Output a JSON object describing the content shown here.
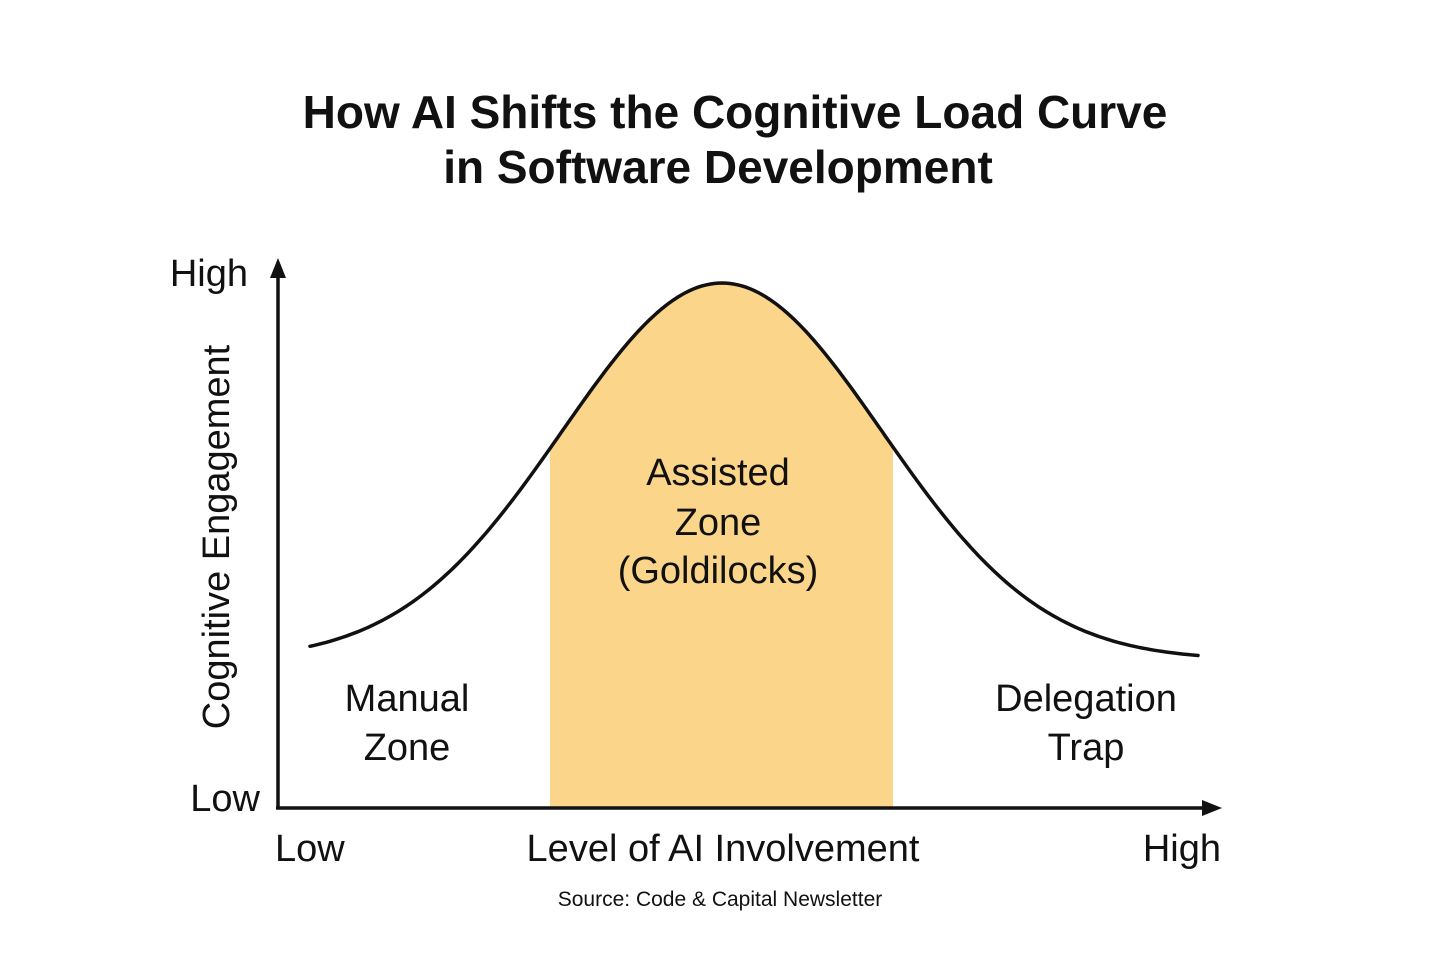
{
  "title": {
    "line1": "How AI Shifts the Cognitive Load Curve",
    "line2": "in Software Development"
  },
  "y_axis": {
    "label": "Cognitive Engagement",
    "high": "High",
    "low": "Low"
  },
  "x_axis": {
    "label": "Level of AI Involvement",
    "low": "Low",
    "high": "High"
  },
  "zones": {
    "manual": {
      "line1": "Manual",
      "line2": "Zone"
    },
    "assisted": {
      "line1": "Assisted",
      "line2": "Zone",
      "line3": "(Goldilocks)"
    },
    "delegation": {
      "line1": "Delegation",
      "line2": "Trap"
    }
  },
  "source": "Source: Code & Capital Newsletter",
  "colors": {
    "highlight": "#fad58a",
    "curve": "#111111",
    "axis": "#111111"
  }
}
